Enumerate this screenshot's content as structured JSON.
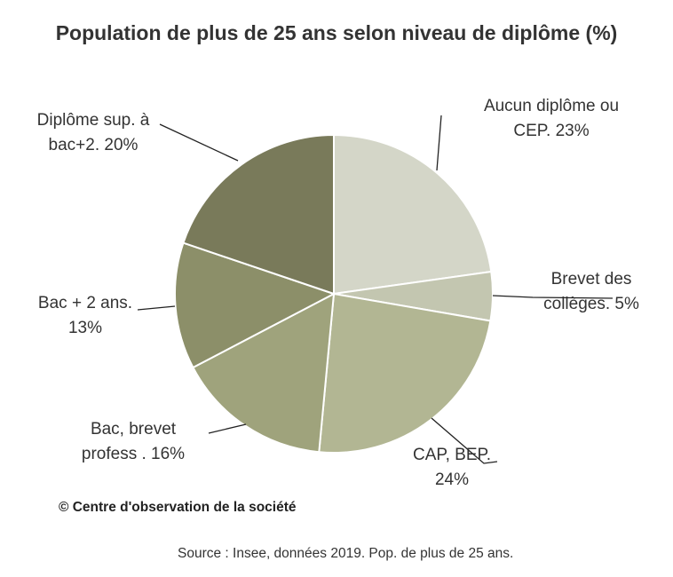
{
  "chart_data": {
    "type": "pie",
    "title": "Population de plus de 25 ans selon niveau de diplôme (%)",
    "slices": [
      {
        "label_lines": [
          "Aucun diplôme ou",
          "CEP. 23%"
        ],
        "value": 23,
        "color": "#d4d6c8"
      },
      {
        "label_lines": [
          "Brevet des",
          "collèges. 5%"
        ],
        "value": 5,
        "color": "#c3c6b0"
      },
      {
        "label_lines": [
          "CAP, BEP.",
          "24%"
        ],
        "value": 24,
        "color": "#b2b693"
      },
      {
        "label_lines": [
          "Bac, brevet",
          "profess . 16%"
        ],
        "value": 16,
        "color": "#9fa37c"
      },
      {
        "label_lines": [
          "Bac + 2 ans.",
          "13%"
        ],
        "value": 13,
        "color": "#8c8f69"
      },
      {
        "label_lines": [
          "Diplôme sup. à",
          "bac+2. 20%"
        ],
        "value": 20,
        "color": "#797a5a"
      }
    ]
  },
  "footer": {
    "copyright": "© Centre d'observation de la  société",
    "source": "Source : Insee, données 2019. Pop. de plus de 25 ans."
  }
}
